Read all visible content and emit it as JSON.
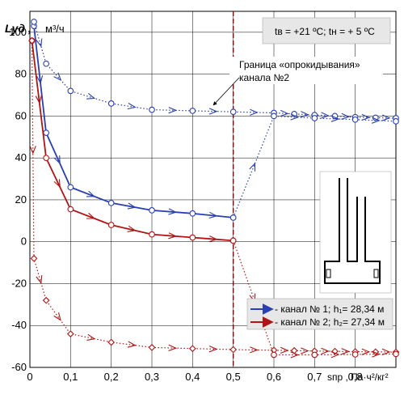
{
  "chart_data": {
    "type": "line",
    "ylabel": "Lуд ,",
    "ylabel_sub": "уд",
    "yunit": "м³/ч",
    "xlabel": "sпр , Па·ч²/кг²",
    "xlabel_sub": "пр",
    "xlim": [
      0,
      0.9
    ],
    "ylim": [
      -60,
      110
    ],
    "x_ticks": [
      0,
      0.1,
      0.2,
      0.3,
      0.4,
      0.5,
      0.6,
      0.7,
      0.8
    ],
    "x_tick_labels": [
      "0",
      "0,1",
      "0,2",
      "0,3",
      "0,4",
      "0,5",
      "0,6",
      "0,7",
      "0,8"
    ],
    "y_ticks": [
      -60,
      -40,
      -20,
      0,
      20,
      40,
      60,
      80,
      100
    ],
    "grid": true,
    "conditions_box": "tв = +21 ºC; tн = + 5 ºC",
    "boundary": {
      "x": 0.5,
      "label_line1": "Граница «опрокидывания»",
      "label_line2": "канала №2"
    },
    "legend": [
      {
        "label": "- канал № 1; h₁= 28,34 м",
        "color": "#2a3fb0"
      },
      {
        "label": "- канал № 2; h₂= 27,34 м",
        "color": "#b01414"
      }
    ],
    "series": [
      {
        "name": "- канал № 1; h₁= 28,34 м",
        "color": "#2a3fb0",
        "style": "solid",
        "marker": "circle",
        "points": [
          [
            0.01,
            103
          ],
          [
            0.04,
            52
          ],
          [
            0.1,
            26
          ],
          [
            0.2,
            18.5
          ],
          [
            0.3,
            15
          ],
          [
            0.4,
            13.5
          ],
          [
            0.5,
            11.5
          ]
        ]
      },
      {
        "name": "- канал № 1; h₁= 28,34 м",
        "color": "#2a3fb0",
        "style": "dotted",
        "marker": "circle",
        "points": [
          [
            0.01,
            105
          ],
          [
            0.04,
            85
          ],
          [
            0.1,
            72
          ],
          [
            0.2,
            66
          ],
          [
            0.3,
            63
          ],
          [
            0.4,
            62.5
          ],
          [
            0.5,
            62
          ],
          [
            0.6,
            61.5
          ],
          [
            0.65,
            61
          ],
          [
            0.7,
            60.5
          ],
          [
            0.75,
            60
          ],
          [
            0.8,
            59.5
          ],
          [
            0.85,
            59.2
          ],
          [
            0.9,
            59
          ]
        ]
      },
      {
        "name": "- канал № 1; h₁= 28,34 м",
        "color": "#2a3fb0",
        "style": "dotted",
        "marker": "circle",
        "points": [
          [
            0.5,
            11.5
          ],
          [
            0.6,
            60
          ],
          [
            0.7,
            59
          ],
          [
            0.8,
            58.3
          ],
          [
            0.9,
            57.5
          ]
        ]
      },
      {
        "name": "- канал № 2; h₂= 27,34 м",
        "color": "#b01414",
        "style": "solid",
        "marker": "circle",
        "points": [
          [
            0.005,
            96
          ],
          [
            0.04,
            40
          ],
          [
            0.1,
            15.5
          ],
          [
            0.2,
            8
          ],
          [
            0.3,
            3.5
          ],
          [
            0.4,
            2
          ],
          [
            0.5,
            0.5
          ]
        ]
      },
      {
        "name": "- канал № 2; h₂= 27,34 м",
        "color": "#b01414",
        "style": "dotted",
        "marker": "diamond",
        "points": [
          [
            0.005,
            96
          ],
          [
            0.01,
            -8
          ],
          [
            0.04,
            -28
          ],
          [
            0.1,
            -44
          ],
          [
            0.2,
            -48
          ],
          [
            0.3,
            -50.5
          ],
          [
            0.4,
            -51
          ],
          [
            0.5,
            -51.5
          ],
          [
            0.6,
            -51.8
          ],
          [
            0.65,
            -52
          ],
          [
            0.7,
            -52.2
          ],
          [
            0.75,
            -52.3
          ],
          [
            0.8,
            -52.5
          ],
          [
            0.85,
            -52.6
          ],
          [
            0.9,
            -52.7
          ]
        ]
      },
      {
        "name": "- канал № 2; h₂= 27,34 м",
        "color": "#b01414",
        "style": "dotted",
        "marker": "circle",
        "points": [
          [
            0.5,
            0.5
          ],
          [
            0.6,
            -54
          ],
          [
            0.7,
            -54
          ],
          [
            0.8,
            -53.8
          ],
          [
            0.9,
            -53.6
          ]
        ]
      }
    ]
  }
}
